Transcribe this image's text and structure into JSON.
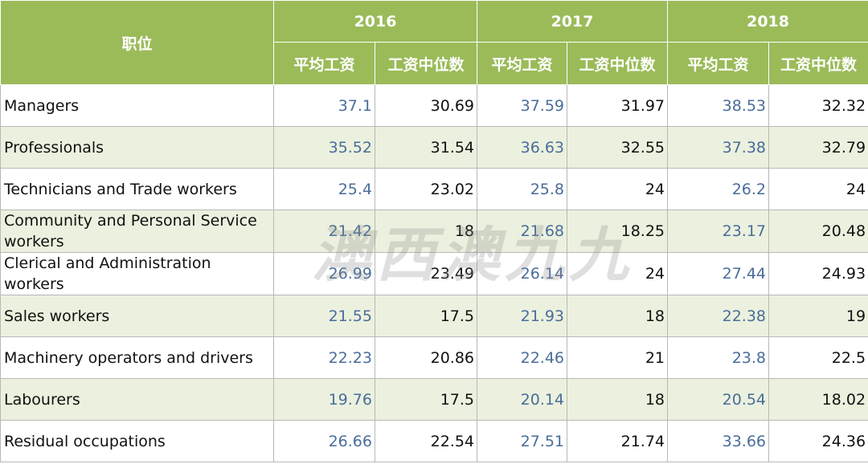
{
  "table": {
    "corner_label": "职位",
    "years": [
      "2016",
      "2017",
      "2018"
    ],
    "sub_headers": [
      "平均工资",
      "工资中位数"
    ],
    "rows": [
      {
        "occupation": "Managers",
        "values": [
          "37.1",
          "30.69",
          "37.59",
          "31.97",
          "38.53",
          "32.32"
        ]
      },
      {
        "occupation": "Professionals",
        "values": [
          "35.52",
          "31.54",
          "36.63",
          "32.55",
          "37.38",
          "32.79"
        ]
      },
      {
        "occupation": "Technicians and Trade workers",
        "values": [
          "25.4",
          "23.02",
          "25.8",
          "24",
          "26.2",
          "24"
        ]
      },
      {
        "occupation": "Community and Personal Service workers",
        "values": [
          "21.42",
          "18",
          "21.68",
          "18.25",
          "23.17",
          "20.48"
        ]
      },
      {
        "occupation": "Clerical and Administration workers",
        "values": [
          "26.99",
          "23.49",
          "26.14",
          "24",
          "27.44",
          "24.93"
        ]
      },
      {
        "occupation": "Sales workers",
        "values": [
          "21.55",
          "17.5",
          "21.93",
          "18",
          "22.38",
          "19"
        ]
      },
      {
        "occupation": "Machinery operators and drivers",
        "values": [
          "22.23",
          "20.86",
          "22.46",
          "21",
          "23.8",
          "22.5"
        ]
      },
      {
        "occupation": "Labourers",
        "values": [
          "19.76",
          "17.5",
          "20.14",
          "18",
          "20.54",
          "18.02"
        ]
      },
      {
        "occupation": "Residual occupations",
        "values": [
          "26.66",
          "22.54",
          "27.51",
          "21.74",
          "33.66",
          "24.36"
        ]
      }
    ]
  },
  "watermark": {
    "text": "澳西澳九九"
  }
}
